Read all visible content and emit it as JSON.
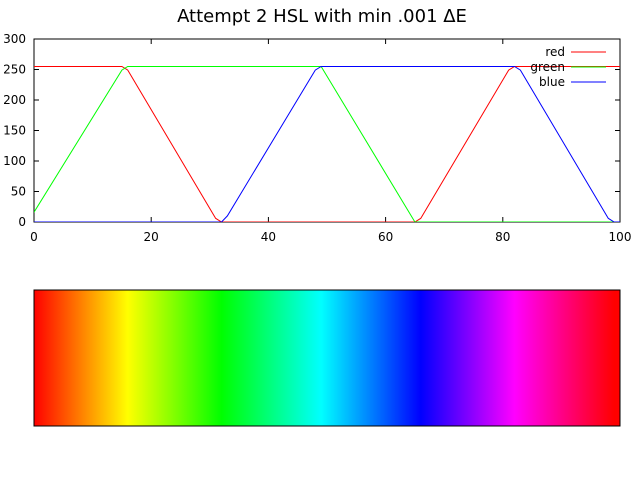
{
  "chart_data": [
    {
      "type": "line",
      "title": "Attempt 2 HSL with min .001 ΔE",
      "xlabel": "",
      "ylabel": "",
      "xlim": [
        0,
        100
      ],
      "ylim": [
        0,
        300
      ],
      "xticks": [
        "0",
        "20",
        "40",
        "60",
        "80",
        "100"
      ],
      "yticks": [
        "0",
        "50",
        "100",
        "150",
        "200",
        "250",
        "300"
      ],
      "grid": false,
      "legend": "top-right",
      "series": [
        {
          "name": "red",
          "color": "#ff0000",
          "points": [
            [
              0,
              255
            ],
            [
              15,
              255
            ],
            [
              16,
              249
            ],
            [
              31,
              6
            ],
            [
              32,
              0
            ],
            [
              65,
              0
            ],
            [
              66,
              6
            ],
            [
              81,
              249
            ],
            [
              82,
              255
            ],
            [
              100,
              255
            ]
          ]
        },
        {
          "name": "green",
          "color": "#00ff00",
          "points": [
            [
              0,
              16
            ],
            [
              15,
              249
            ],
            [
              16,
              255
            ],
            [
              48,
              255
            ],
            [
              49,
              255
            ],
            [
              64,
              16
            ],
            [
              65,
              0
            ],
            [
              100,
              0
            ]
          ]
        },
        {
          "name": "blue",
          "color": "#0000ff",
          "points": [
            [
              0,
              0
            ],
            [
              32,
              0
            ],
            [
              33,
              10
            ],
            [
              48,
              249
            ],
            [
              49,
              255
            ],
            [
              82,
              255
            ],
            [
              83,
              249
            ],
            [
              98,
              6
            ],
            [
              99,
              0
            ],
            [
              100,
              0
            ]
          ]
        }
      ]
    },
    {
      "type": "heatmap",
      "title": "",
      "xlim": [
        0,
        100
      ],
      "gradient_stops": [
        {
          "x": 0,
          "color": "#ff0000"
        },
        {
          "x": 16,
          "color": "#ffff00"
        },
        {
          "x": 32,
          "color": "#00ff00"
        },
        {
          "x": 49,
          "color": "#00ffff"
        },
        {
          "x": 66,
          "color": "#0000ff"
        },
        {
          "x": 82,
          "color": "#ff00ff"
        },
        {
          "x": 99,
          "color": "#ff0000"
        },
        {
          "x": 100,
          "color": "#ff0000"
        }
      ]
    }
  ]
}
